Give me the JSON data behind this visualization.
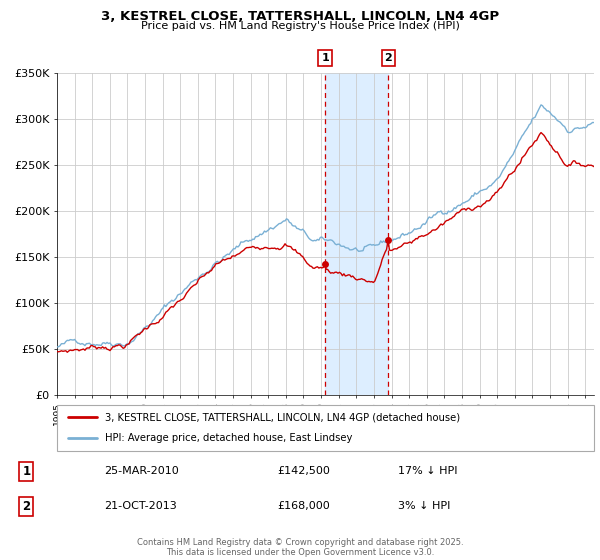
{
  "title": "3, KESTREL CLOSE, TATTERSHALL, LINCOLN, LN4 4GP",
  "subtitle": "Price paid vs. HM Land Registry's House Price Index (HPI)",
  "legend_line1": "3, KESTREL CLOSE, TATTERSHALL, LINCOLN, LN4 4GP (detached house)",
  "legend_line2": "HPI: Average price, detached house, East Lindsey",
  "footer": "Contains HM Land Registry data © Crown copyright and database right 2025.\nThis data is licensed under the Open Government Licence v3.0.",
  "sale1_label": "1",
  "sale1_date": "25-MAR-2010",
  "sale1_price": "£142,500",
  "sale1_hpi": "17% ↓ HPI",
  "sale2_label": "2",
  "sale2_date": "21-OCT-2013",
  "sale2_price": "£168,000",
  "sale2_hpi": "3% ↓ HPI",
  "sale1_x": 2010.23,
  "sale1_y": 142500,
  "sale2_x": 2013.81,
  "sale2_y": 168000,
  "vline1_x": 2010.23,
  "vline2_x": 2013.81,
  "shade_start": 2010.23,
  "shade_end": 2013.81,
  "red_color": "#cc0000",
  "blue_color": "#7ab0d4",
  "shade_color": "#ddeeff",
  "grid_color": "#cccccc",
  "ylim": [
    0,
    350000
  ],
  "xlim": [
    1995,
    2025.5
  ],
  "yticks": [
    0,
    50000,
    100000,
    150000,
    200000,
    250000,
    300000,
    350000
  ],
  "ytick_labels": [
    "£0",
    "£50K",
    "£100K",
    "£150K",
    "£200K",
    "£250K",
    "£300K",
    "£350K"
  ]
}
